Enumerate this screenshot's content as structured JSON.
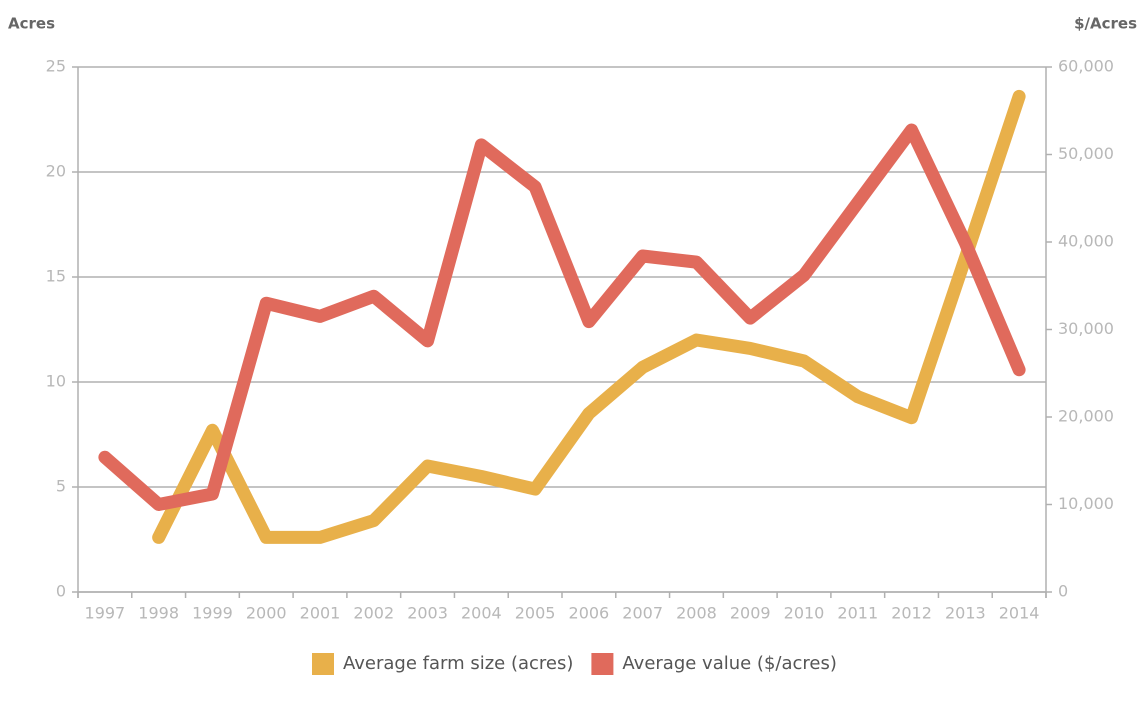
{
  "chart_data": {
    "type": "line",
    "y_label": "Acres",
    "y2_label": "$/Acres",
    "categories": [
      "1997",
      "1998",
      "1999",
      "2000",
      "2001",
      "2002",
      "2003",
      "2004",
      "2005",
      "2006",
      "2007",
      "2008",
      "2009",
      "2010",
      "2011",
      "2012",
      "2013",
      "2014"
    ],
    "series": [
      {
        "name": "Average farm size (acres)",
        "color": "#e8b04a",
        "values": [
          null,
          2.6,
          7.7,
          2.6,
          2.6,
          3.4,
          6.0,
          5.5,
          4.9,
          8.5,
          10.7,
          12.0,
          11.6,
          11.0,
          9.3,
          8.3,
          15.9,
          23.6
        ]
      },
      {
        "name": "Average value ($/acres)",
        "color": "#e06a5c",
        "axis": "y2",
        "values": [
          15400,
          10000,
          11200,
          33000,
          31500,
          33800,
          28700,
          51100,
          46300,
          30900,
          38400,
          37700,
          31300,
          36200,
          44500,
          52800,
          39900,
          25400
        ]
      }
    ],
    "ylim": [
      0,
      25
    ],
    "yticks": [
      0,
      5,
      10,
      15,
      20,
      25
    ],
    "y2lim": [
      0,
      60000
    ],
    "y2ticks": [
      0,
      {
        "value": 10000,
        "label": "10,000"
      },
      {
        "value": 20000,
        "label": "20,000"
      },
      {
        "value": 30000,
        "label": "30,000"
      },
      {
        "value": 40000,
        "label": "40,000"
      },
      {
        "value": 50000,
        "label": "50,000"
      },
      {
        "value": 60000,
        "label": "60,000"
      }
    ],
    "grid": true,
    "legend": "bottom"
  }
}
